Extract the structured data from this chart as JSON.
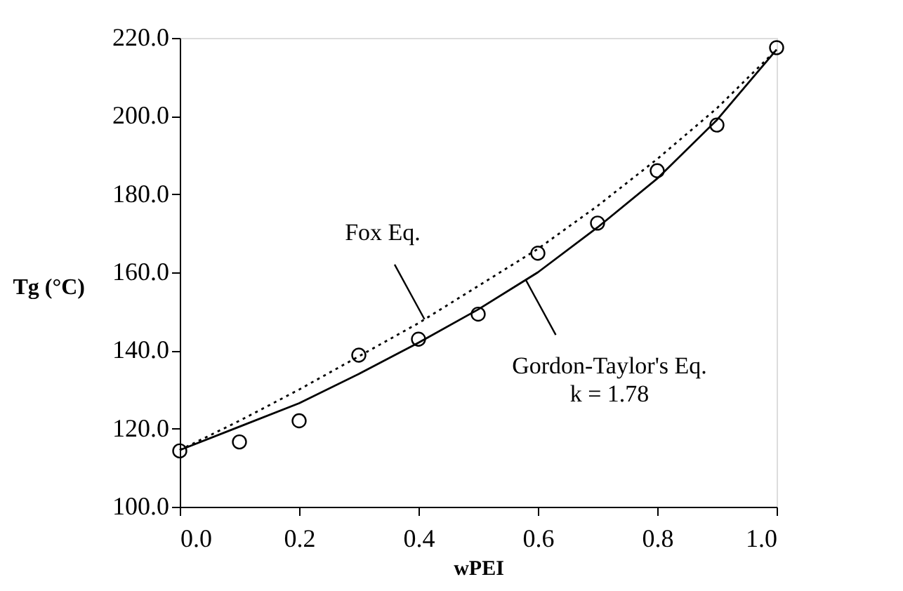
{
  "chart_data": {
    "type": "scatter",
    "xlabel": "wPEI",
    "ylabel": "Tg (°C)",
    "x": [
      0.0,
      0.1,
      0.2,
      0.3,
      0.4,
      0.5,
      0.6,
      0.7,
      0.8,
      0.9,
      1.0
    ],
    "xlim": [
      0,
      1
    ],
    "ylim": [
      100,
      220
    ],
    "xticks": [
      {
        "value": 0,
        "label": "0.0"
      },
      {
        "value": 0.2,
        "label": "0.2"
      },
      {
        "value": 0.4,
        "label": "0.4"
      },
      {
        "value": 0.6,
        "label": "0.6"
      },
      {
        "value": 0.8,
        "label": "0.8"
      },
      {
        "value": 1,
        "label": "1.0"
      }
    ],
    "yticks": [
      {
        "value": 100,
        "label": "100.0"
      },
      {
        "value": 120,
        "label": "120.0"
      },
      {
        "value": 140,
        "label": "140.0"
      },
      {
        "value": 160,
        "label": "160.0"
      },
      {
        "value": 180,
        "label": "180.0"
      },
      {
        "value": 200,
        "label": "200.0"
      },
      {
        "value": 220,
        "label": "220.0"
      }
    ],
    "grid": false,
    "series": [
      {
        "marker": "circle",
        "color": "#000000",
        "values": [
          114.3,
          116.6,
          122.0,
          138.8,
          142.9,
          149.3,
          164.9,
          172.6,
          186.0,
          197.7,
          217.5
        ]
      },
      {
        "type": "line",
        "line_style": "solid",
        "marker": "none",
        "color": "#000000",
        "values": [
          114.5,
          120.5,
          126.5,
          134.0,
          142.0,
          150.5,
          160.0,
          171.5,
          184.0,
          199.0,
          217.0
        ]
      },
      {
        "type": "line",
        "line_style": "dotted",
        "marker": "none",
        "color": "#000000",
        "values": [
          114.5,
          122.0,
          130.0,
          138.5,
          147.0,
          156.5,
          166.0,
          177.0,
          189.0,
          202.0,
          217.0
        ]
      }
    ],
    "annotations": [
      {
        "text": "Fox Eq.",
        "x": 0.41,
        "y": 148
      },
      {
        "text": "Gordon-Taylor's Eq.\nk = 1.78",
        "x": 0.58,
        "y": 158
      }
    ]
  }
}
